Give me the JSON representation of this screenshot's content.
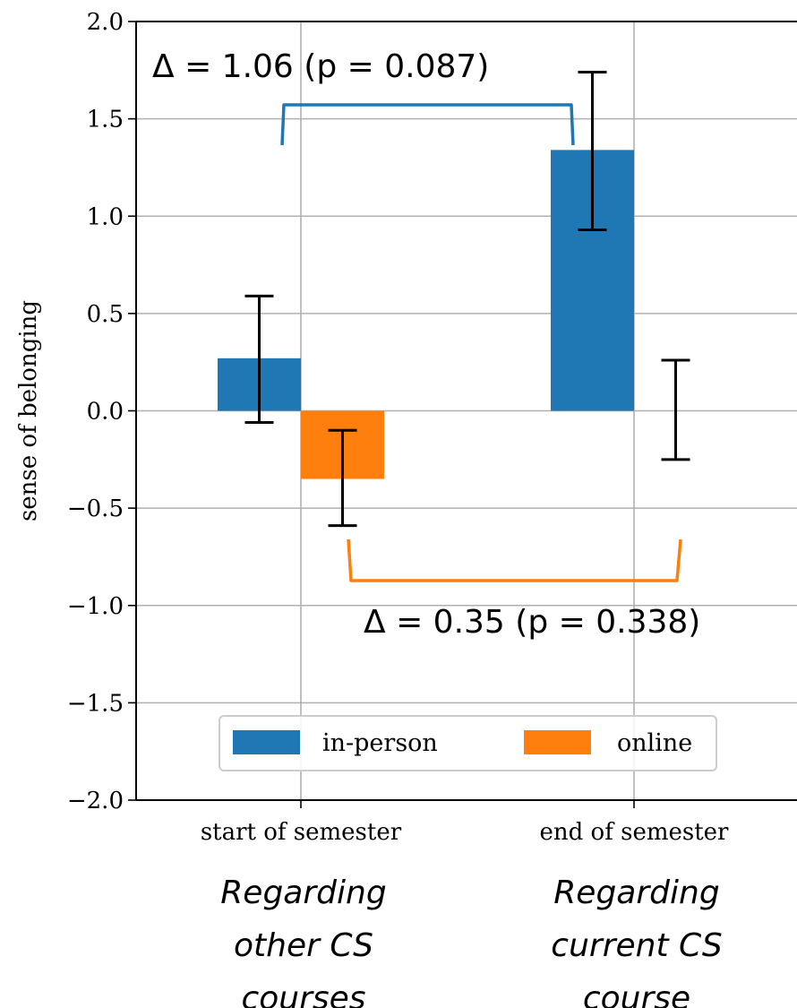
{
  "chart_data": {
    "type": "bar",
    "categories": [
      "start of semester",
      "end of semester"
    ],
    "series": [
      {
        "name": "in-person",
        "color": "#1f77b4",
        "values": [
          0.27,
          1.34
        ],
        "err_low": [
          -0.06,
          0.93
        ],
        "err_high": [
          0.59,
          1.74
        ]
      },
      {
        "name": "online",
        "color": "#ff7f0e",
        "values": [
          -0.35,
          0.0
        ],
        "err_low": [
          -0.59,
          -0.25
        ],
        "err_high": [
          -0.1,
          0.26
        ]
      }
    ],
    "ylabel": "sense of belonging",
    "xlabel": "",
    "ylim": [
      -2.0,
      2.0
    ],
    "yticks": [
      "2.0",
      "1.5",
      "1.0",
      "0.5",
      "0.0",
      "−0.5",
      "−1.0",
      "−1.5",
      "−2.0"
    ],
    "ytick_values": [
      2.0,
      1.5,
      1.0,
      0.5,
      0.0,
      -0.5,
      -1.0,
      -1.5,
      -2.0
    ],
    "grid": true,
    "legend_position": "lower-center",
    "annotations": [
      {
        "text": "Δ = 1.06 (p = 0.087)",
        "color": "#1f77b4",
        "from_category": 0,
        "to_category": 1,
        "series": "in-person"
      },
      {
        "text": "Δ = 0.35 (p = 0.338)",
        "color": "#ff7f0e",
        "from_category": 0,
        "to_category": 1,
        "series": "online"
      }
    ],
    "category_sublabels": [
      [
        "Regarding",
        "other CS",
        "courses"
      ],
      [
        "Regarding",
        "current CS",
        "course"
      ]
    ]
  }
}
